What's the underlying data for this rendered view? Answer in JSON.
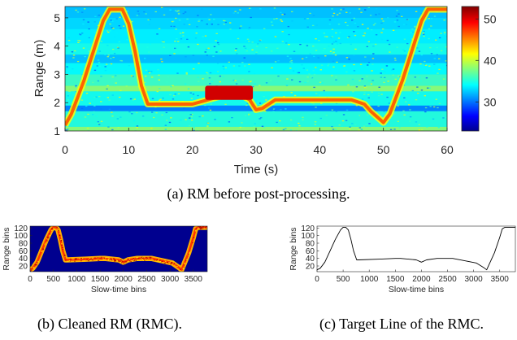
{
  "chart_data": [
    {
      "id": "a",
      "type": "heatmap",
      "caption": "(a) RM before post-processing.",
      "xlabel": "Time (s)",
      "ylabel": "Range (m)",
      "xlim": [
        0,
        60
      ],
      "ylim": [
        1,
        5.4
      ],
      "xticks": [
        0,
        10,
        20,
        30,
        40,
        50,
        60
      ],
      "yticks": [
        1,
        2,
        3,
        4,
        5
      ],
      "colorbar": {
        "range": [
          23,
          53
        ],
        "ticks": [
          30,
          40,
          50
        ],
        "colormap": "jet"
      },
      "target_trace": {
        "t": [
          0,
          1,
          2,
          3,
          4,
          5,
          6,
          7,
          8,
          9,
          10,
          11,
          12,
          13,
          20,
          24,
          27,
          29,
          30,
          31,
          33,
          40,
          43,
          45,
          47,
          48,
          49,
          50,
          51,
          52,
          53,
          54,
          55,
          56,
          57,
          58,
          60
        ],
        "range_m": [
          1.2,
          1.6,
          2.2,
          2.8,
          3.5,
          4.2,
          4.9,
          5.3,
          5.3,
          5.3,
          4.8,
          3.8,
          2.6,
          1.95,
          1.95,
          2.2,
          2.35,
          2.1,
          1.75,
          1.8,
          2.1,
          2.1,
          2.1,
          2.1,
          1.95,
          1.7,
          1.5,
          1.3,
          1.6,
          2.2,
          2.8,
          3.5,
          4.2,
          4.9,
          5.3,
          5.3,
          5.3
        ]
      }
    },
    {
      "id": "b",
      "type": "heatmap",
      "caption": "(b) Cleaned RM (RMC).",
      "xlabel": "Slow-time bins",
      "ylabel": "Range bins",
      "xlim": [
        0,
        3800
      ],
      "ylim": [
        5,
        125
      ],
      "xticks": [
        0,
        500,
        1000,
        1500,
        2000,
        2500,
        3000,
        3500
      ],
      "yticks": [
        20,
        40,
        60,
        80,
        100,
        120
      ],
      "target_line": {
        "x": [
          0,
          60,
          150,
          250,
          350,
          450,
          500,
          550,
          600,
          650,
          700,
          760,
          800,
          1200,
          1500,
          1600,
          1900,
          2000,
          2100,
          2300,
          2600,
          2900,
          3050,
          3200,
          3250,
          3300,
          3400,
          3500,
          3550,
          3600,
          3800
        ],
        "y": [
          10,
          14,
          30,
          60,
          90,
          115,
          122,
          122,
          115,
          90,
          60,
          36,
          36,
          38,
          40,
          40,
          36,
          30,
          36,
          40,
          40,
          32,
          28,
          15,
          10,
          25,
          55,
          95,
          118,
          122,
          122
        ]
      }
    },
    {
      "id": "c",
      "type": "line",
      "caption": "(c) Target Line of the RMC.",
      "xlabel": "Slow-time bins",
      "ylabel": "Range bins",
      "xlim": [
        0,
        3800
      ],
      "ylim": [
        5,
        125
      ],
      "xticks": [
        0,
        500,
        1000,
        1500,
        2000,
        2500,
        3000,
        3500
      ],
      "yticks": [
        20,
        40,
        60,
        80,
        100,
        120
      ],
      "series": [
        {
          "x": [
            0,
            60,
            150,
            250,
            350,
            450,
            500,
            550,
            600,
            650,
            700,
            760,
            800,
            1200,
            1500,
            1600,
            1900,
            2000,
            2100,
            2300,
            2600,
            2900,
            3050,
            3200,
            3250,
            3300,
            3400,
            3500,
            3550,
            3600,
            3800
          ],
          "y": [
            10,
            14,
            30,
            60,
            90,
            115,
            122,
            122,
            115,
            90,
            60,
            36,
            36,
            38,
            40,
            40,
            36,
            30,
            36,
            40,
            40,
            32,
            28,
            15,
            10,
            25,
            55,
            95,
            118,
            122,
            122
          ]
        }
      ]
    }
  ]
}
